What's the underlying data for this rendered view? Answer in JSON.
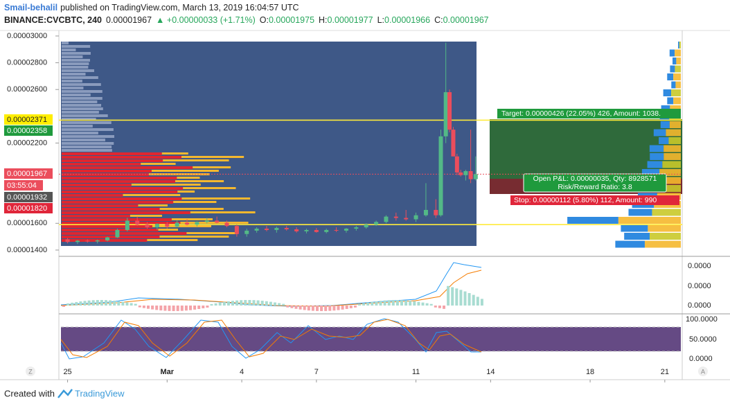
{
  "header": {
    "author": "Smail-behalil",
    "published": "published on TradingView.com, March 13, 2019 16:04:57 UTC",
    "symbol": "BINANCE:CVCBTC, 240",
    "last": "0.00001967",
    "change": "▲ +0.00000033 (+1.71%)",
    "ohlc": [
      {
        "label": "O:",
        "value": "0.00001975"
      },
      {
        "label": "H:",
        "value": "0.00001977"
      },
      {
        "label": "L:",
        "value": "0.00001966"
      },
      {
        "label": "C:",
        "value": "0.00001967"
      }
    ]
  },
  "chart_data": {
    "type": "candlestick",
    "up_color": "#53b987",
    "down_color": "#eb4d5c",
    "x": [
      0,
      0.4,
      0.8,
      1.2,
      1.6,
      2.0,
      2.4,
      2.8,
      3.2,
      3.6,
      4.0,
      4.4,
      4.8,
      5.2,
      5.6,
      6.0,
      6.4,
      6.8,
      7.2,
      7.6,
      8.0,
      8.4,
      8.8,
      9.2,
      9.6,
      10.0,
      10.4,
      10.8,
      11.2,
      11.6,
      12.0,
      12.4,
      12.8,
      13.2,
      13.6,
      14.0,
      14.4,
      14.8,
      15.0,
      15.2,
      15.35,
      15.5,
      15.65,
      15.8,
      16.0,
      16.2,
      16.4
    ],
    "open": [
      1.48e-05,
      1.46e-05,
      1.47e-05,
      1.465e-05,
      1.472e-05,
      1.495e-05,
      1.55e-05,
      1.62e-05,
      1.59e-05,
      1.57e-05,
      1.595e-05,
      1.575e-05,
      1.605e-05,
      1.59e-05,
      1.61e-05,
      1.62e-05,
      1.605e-05,
      1.58e-05,
      1.52e-05,
      1.545e-05,
      1.56e-05,
      1.55e-05,
      1.565e-05,
      1.555e-05,
      1.54e-05,
      1.55e-05,
      1.535e-05,
      1.55e-05,
      1.545e-05,
      1.56e-05,
      1.57e-05,
      1.59e-05,
      1.61e-05,
      1.65e-05,
      1.64e-05,
      1.63e-05,
      1.66e-05,
      1.7e-05,
      1.66e-05,
      2.25e-05,
      2.58e-05,
      2.3e-05,
      2.1e-05,
      1.98e-05,
      1.96e-05,
      1.99e-05,
      1.93e-05
    ],
    "high": [
      1.49e-05,
      1.475e-05,
      1.48e-05,
      1.478e-05,
      1.5e-05,
      1.56e-05,
      1.64e-05,
      1.65e-05,
      1.61e-05,
      1.6e-05,
      1.61e-05,
      1.62e-05,
      1.63e-05,
      1.615e-05,
      1.64e-05,
      1.65e-05,
      1.62e-05,
      1.59e-05,
      1.56e-05,
      1.57e-05,
      1.58e-05,
      1.575e-05,
      1.58e-05,
      1.57e-05,
      1.56e-05,
      1.565e-05,
      1.56e-05,
      1.57e-05,
      1.565e-05,
      1.58e-05,
      1.6e-05,
      1.62e-05,
      1.66e-05,
      1.68e-05,
      1.7e-05,
      1.68e-05,
      1.9e-05,
      1.78e-05,
      2.3e-05,
      2.95e-05,
      2.6e-05,
      2.32e-05,
      2.12e-05,
      2e-05,
      2e-05,
      2.3e-05,
      2.1e-05
    ],
    "low": [
      1.45e-05,
      1.445e-05,
      1.455e-05,
      1.45e-05,
      1.465e-05,
      1.49e-05,
      1.54e-05,
      1.58e-05,
      1.56e-05,
      1.55e-05,
      1.56e-05,
      1.57e-05,
      1.585e-05,
      1.575e-05,
      1.6e-05,
      1.6e-05,
      1.57e-05,
      1.5e-05,
      1.5e-05,
      1.53e-05,
      1.54e-05,
      1.53e-05,
      1.545e-05,
      1.53e-05,
      1.525e-05,
      1.53e-05,
      1.525e-05,
      1.535e-05,
      1.53e-05,
      1.545e-05,
      1.56e-05,
      1.58e-05,
      1.6e-05,
      1.62e-05,
      1.62e-05,
      1.61e-05,
      1.65e-05,
      1.64e-05,
      1.65e-05,
      2.2e-05,
      2.28e-05,
      2.1e-05,
      1.96e-05,
      1.95e-05,
      1.92e-05,
      1.9e-05,
      1.92e-05
    ],
    "close": [
      1.46e-05,
      1.47e-05,
      1.465e-05,
      1.472e-05,
      1.495e-05,
      1.55e-05,
      1.62e-05,
      1.59e-05,
      1.57e-05,
      1.595e-05,
      1.575e-05,
      1.605e-05,
      1.59e-05,
      1.61e-05,
      1.62e-05,
      1.605e-05,
      1.58e-05,
      1.52e-05,
      1.545e-05,
      1.56e-05,
      1.55e-05,
      1.565e-05,
      1.555e-05,
      1.54e-05,
      1.55e-05,
      1.535e-05,
      1.55e-05,
      1.545e-05,
      1.56e-05,
      1.57e-05,
      1.59e-05,
      1.61e-05,
      1.65e-05,
      1.64e-05,
      1.63e-05,
      1.66e-05,
      1.7e-05,
      1.66e-05,
      2.25e-05,
      2.58e-05,
      2.3e-05,
      2.1e-05,
      1.98e-05,
      1.96e-05,
      1.99e-05,
      1.93e-05,
      1.967e-05
    ],
    "xlim": [
      -0.35,
      24.7
    ],
    "xticks": [
      {
        "value": 0,
        "label": "25"
      },
      {
        "value": 4,
        "label": "Mar"
      },
      {
        "value": 7,
        "label": "4"
      },
      {
        "value": 10,
        "label": "7"
      },
      {
        "value": 14,
        "label": "11"
      },
      {
        "value": 17,
        "label": "14"
      },
      {
        "value": 21,
        "label": "18"
      },
      {
        "value": 24,
        "label": "21"
      }
    ],
    "ylim": [
      1.353e-05,
      3.036e-05
    ],
    "yticks": [
      {
        "value": 3e-05,
        "label": "0.00003000"
      },
      {
        "value": 2.8e-05,
        "label": "0.00002800"
      },
      {
        "value": 2.6e-05,
        "label": "0.00002600"
      },
      {
        "value": 2.2e-05,
        "label": "0.00002200"
      },
      {
        "value": 1.6e-05,
        "label": "0.00001600"
      },
      {
        "value": 1.4e-05,
        "label": "0.00001400"
      }
    ],
    "price_lines": [
      {
        "value": 2.371e-05,
        "color": "#ffeb3b"
      },
      {
        "value": 1.59e-05,
        "color": "#ffeb3b"
      },
      {
        "value": 1.967e-05,
        "color": "#eb4d5c"
      }
    ]
  },
  "axis_badges": [
    "0.00002371",
    "0.00002358",
    "0.00001967",
    "03:55:04",
    "0.00001932",
    "0.00001820"
  ],
  "position": {
    "target": "Target: 0.00000426 (22.05%) 426, Amount: 1038.",
    "pnl": "Open P&L: 0.00000035, Qty: 8928571",
    "ratio": "Risk/Reward Ratio: 3.8",
    "stop": "Stop: 0.00000112 (5.80%) 112, Amount: 990"
  },
  "indicators": {
    "macd_labels": [
      "0.0000",
      "0.0000",
      "0.0000"
    ],
    "stoch_labels": [
      "100.0000",
      "50.0000",
      "0.0000"
    ]
  },
  "corner": [
    "Z",
    "A"
  ],
  "footer": {
    "created": "Created with",
    "brand": "TradingView"
  }
}
